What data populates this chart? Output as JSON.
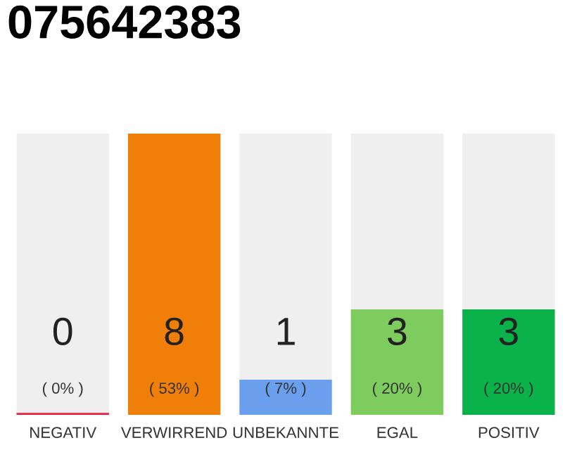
{
  "chart_data": {
    "type": "bar",
    "title": "075642383",
    "categories": [
      "NEGATIV",
      "VERWIRREND",
      "UNBEKANNTE",
      "EGAL",
      "POSITIV"
    ],
    "values": [
      0,
      8,
      1,
      3,
      3
    ],
    "colors": [
      "#e8213c",
      "#f07f0a",
      "#6a9fee",
      "#7ecb5e",
      "#0bb24a"
    ],
    "value_labels": [
      "0\n( 0% )",
      "8\n( 53% )",
      "1\n( 7% )",
      "3\n( 20% )",
      "3\n( 20% )"
    ],
    "grid": false,
    "legend": false
  }
}
